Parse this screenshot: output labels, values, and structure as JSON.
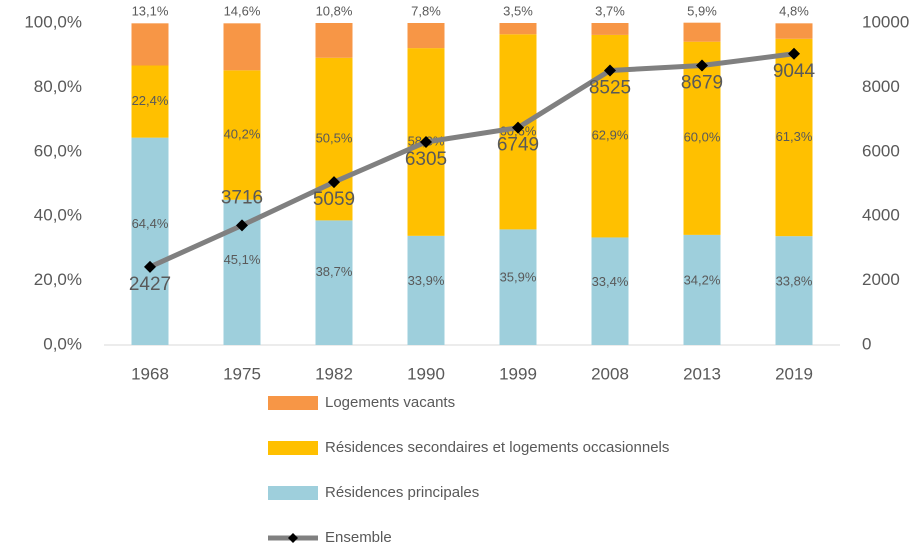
{
  "chart_data": {
    "type": "bar",
    "stacked": true,
    "categories": [
      "1968",
      "1975",
      "1982",
      "1990",
      "1999",
      "2008",
      "2013",
      "2019"
    ],
    "series": [
      {
        "name": "Résidences principales",
        "color": "#9ecfdc",
        "values": [
          64.4,
          45.1,
          38.7,
          33.9,
          35.9,
          33.4,
          34.2,
          33.8
        ],
        "value_labels": [
          "64,4%",
          "45,1%",
          "38,7%",
          "33,9%",
          "35,9%",
          "33,4%",
          "34,2%",
          "33,8%"
        ]
      },
      {
        "name": "Résidences secondaires et logements occasionnels",
        "color": "#ffc000",
        "values": [
          22.4,
          40.2,
          50.5,
          58.3,
          60.6,
          62.9,
          60.0,
          61.3
        ],
        "value_labels": [
          "22,4%",
          "40,2%",
          "50,5%",
          "58,3%",
          "60,6%",
          "62,9%",
          "60,0%",
          "61,3%"
        ]
      },
      {
        "name": "Logements vacants",
        "color": "#f79646",
        "values": [
          13.1,
          14.6,
          10.8,
          7.8,
          3.5,
          3.7,
          5.9,
          4.8
        ],
        "value_labels": [
          "13,1%",
          "14,6%",
          "10,8%",
          "7,8%",
          "3,5%",
          "3,7%",
          "5,9%",
          "4,8%"
        ]
      },
      {
        "name": "Ensemble",
        "type": "line",
        "axis": "y2",
        "color": "#808080",
        "marker_color": "#000000",
        "values": [
          2427,
          3716,
          5059,
          6305,
          6749,
          8525,
          8679,
          9044
        ]
      }
    ],
    "ylim": [
      0,
      100
    ],
    "yticks": [
      {
        "value": 0,
        "label": "0,0%"
      },
      {
        "value": 20,
        "label": "20,0%"
      },
      {
        "value": 40,
        "label": "40,0%"
      },
      {
        "value": 60,
        "label": "60,0%"
      },
      {
        "value": 80,
        "label": "80,0%"
      },
      {
        "value": 100,
        "label": "100,0%"
      }
    ],
    "y2lim": [
      0,
      10000
    ],
    "y2ticks": [
      0,
      2000,
      4000,
      6000,
      8000,
      10000
    ],
    "legend": "bottom"
  }
}
